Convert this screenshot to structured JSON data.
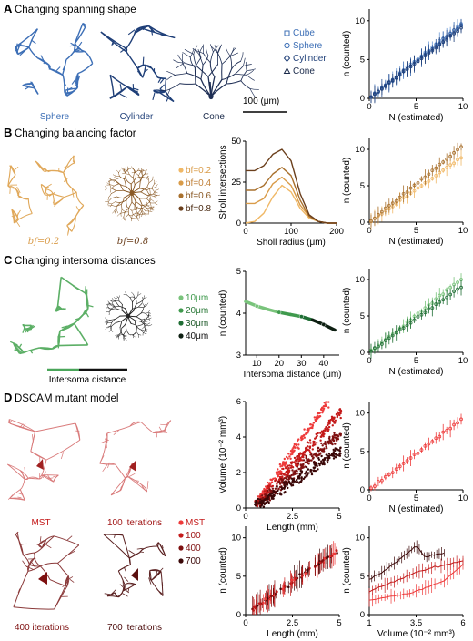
{
  "panels": {
    "A": {
      "letter": "A",
      "title": "Changing spanning shape",
      "labels": [
        "Sphere",
        "Cylinder",
        "Cone"
      ],
      "scale_bar": "100 (μm)",
      "legend": [
        "Cube",
        "Sphere",
        "Cylinder",
        "Cone"
      ]
    },
    "B": {
      "letter": "B",
      "title": "Changing balancing factor",
      "labels": [
        "bf=0.2",
        "bf=0.8"
      ],
      "legend": [
        "bf=0.2",
        "bf=0.4",
        "bf=0.6",
        "bf=0.8"
      ]
    },
    "C": {
      "letter": "C",
      "title": "Changing intersoma distances",
      "bar_label": "Intersoma distance",
      "legend": [
        "10μm",
        "20μm",
        "30μm",
        "40μm"
      ]
    },
    "D": {
      "letter": "D",
      "title": "DSCAM mutant model",
      "labels": [
        "MST",
        "100 iterations",
        "400 iterations",
        "700 iterations"
      ],
      "legend": [
        "MST",
        "100",
        "400",
        "700"
      ]
    }
  },
  "colors": {
    "blue": "#3d6fb6",
    "blue_dark": "#1f3f78",
    "orange": [
      "#f0b866",
      "#d99b48",
      "#a9712e",
      "#6b3f1c"
    ],
    "green": [
      "#79c37b",
      "#3f9a4d",
      "#1f6e34",
      "#0d1f12"
    ],
    "red": [
      "#ee3a3a",
      "#c41a1a",
      "#7e1010",
      "#3b0808"
    ]
  },
  "chart_data": [
    {
      "id": "A-nN",
      "type": "scatter",
      "xlabel": "N (estimated)",
      "ylabel": "n (counted)",
      "xlim": [
        0,
        10
      ],
      "ylim": [
        0,
        11.5
      ],
      "xticks": [
        "0",
        "5",
        "10"
      ],
      "yticks": [
        "0",
        "5",
        "10"
      ],
      "series": [
        {
          "name": "Cube",
          "x": [
            0,
            10
          ],
          "y": [
            0,
            9.8
          ]
        },
        {
          "name": "Sphere",
          "x": [
            0,
            10
          ],
          "y": [
            0,
            9.6
          ]
        },
        {
          "name": "Cylinder",
          "x": [
            0,
            10
          ],
          "y": [
            0,
            9.4
          ]
        },
        {
          "name": "Cone",
          "x": [
            0,
            10
          ],
          "y": [
            0,
            9.2
          ]
        }
      ]
    },
    {
      "id": "B-sholl",
      "type": "line",
      "xlabel": "Sholl radius (μm)",
      "ylabel": "Sholl intersections",
      "xlim": [
        0,
        200
      ],
      "ylim": [
        0,
        50
      ],
      "xticks": [
        "0",
        "100",
        "200"
      ],
      "yticks": [
        "0",
        "25",
        "50"
      ],
      "series": [
        {
          "name": "bf=0.2",
          "x": [
            0,
            20,
            40,
            60,
            80,
            100,
            120,
            140,
            160,
            180,
            200
          ],
          "y": [
            0,
            1,
            6,
            16,
            23,
            19,
            9,
            3,
            1,
            0,
            0
          ]
        },
        {
          "name": "bf=0.4",
          "x": [
            0,
            20,
            40,
            60,
            80,
            100,
            120,
            140,
            160,
            180,
            200
          ],
          "y": [
            12,
            12,
            15,
            24,
            28,
            23,
            11,
            4,
            1,
            0,
            0
          ]
        },
        {
          "name": "bf=0.6",
          "x": [
            0,
            20,
            40,
            60,
            80,
            100,
            120,
            140,
            160,
            180,
            200
          ],
          "y": [
            20,
            20,
            23,
            30,
            34,
            29,
            14,
            4,
            1,
            0,
            0
          ]
        },
        {
          "name": "bf=0.8",
          "x": [
            0,
            20,
            40,
            60,
            80,
            100,
            120,
            140,
            160,
            180,
            200
          ],
          "y": [
            32,
            32,
            35,
            42,
            45,
            38,
            18,
            5,
            1,
            0,
            0
          ]
        }
      ]
    },
    {
      "id": "B-nN",
      "type": "scatter",
      "xlabel": "N (estimated)",
      "ylabel": "n (counted)",
      "xlim": [
        0,
        10
      ],
      "ylim": [
        0,
        11.5
      ],
      "xticks": [
        "0",
        "5",
        "10"
      ],
      "yticks": [
        "0",
        "5",
        "10"
      ],
      "series": [
        {
          "name": "bf=0.2",
          "x": [
            0,
            10
          ],
          "y": [
            0,
            9.0
          ]
        },
        {
          "name": "bf=0.8",
          "x": [
            0,
            10
          ],
          "y": [
            0,
            10.5
          ]
        }
      ]
    },
    {
      "id": "C-dist",
      "type": "line",
      "xlabel": "Intersoma distance (μm)",
      "ylabel": "n (counted)",
      "xlim": [
        5,
        47
      ],
      "ylim": [
        3,
        5
      ],
      "xticks": [
        "10",
        "20",
        "30",
        "40"
      ],
      "yticks": [
        "3",
        "4",
        "5"
      ],
      "series": [
        {
          "name": "n",
          "x": [
            5,
            10,
            15,
            20,
            25,
            30,
            35,
            40,
            45
          ],
          "y": [
            4.28,
            4.17,
            4.09,
            4.02,
            3.97,
            3.92,
            3.84,
            3.73,
            3.6
          ]
        }
      ],
      "markers": {
        "x": [
          10,
          20,
          30,
          40
        ],
        "y": [
          4.17,
          4.02,
          3.92,
          3.73
        ]
      }
    },
    {
      "id": "C-nN",
      "type": "scatter",
      "xlabel": "N (estimated)",
      "ylabel": "n (counted)",
      "xlim": [
        0,
        10
      ],
      "ylim": [
        0,
        11.5
      ],
      "xticks": [
        "0",
        "5",
        "10"
      ],
      "yticks": [
        "0",
        "5",
        "10"
      ],
      "series": [
        {
          "name": "10μm",
          "x": [
            0,
            10
          ],
          "y": [
            0,
            10.2
          ]
        },
        {
          "name": "40μm",
          "x": [
            0,
            10
          ],
          "y": [
            0,
            9.2
          ]
        }
      ]
    },
    {
      "id": "D-vol",
      "type": "scatter",
      "xlabel": "Length (mm)",
      "ylabel": "Volume (10⁻² mm³)",
      "xlim": [
        0,
        5
      ],
      "ylim": [
        0,
        6
      ],
      "xticks": [
        "0",
        "2.5",
        "5"
      ],
      "yticks": [
        "0",
        "2",
        "4",
        "6"
      ],
      "series": [
        {
          "name": "MST",
          "slope": 1.5
        },
        {
          "name": "100",
          "slope": 1.15
        },
        {
          "name": "400",
          "slope": 0.9
        },
        {
          "name": "700",
          "slope": 0.7
        }
      ]
    },
    {
      "id": "D-nN",
      "type": "scatter",
      "xlabel": "N (estimated)",
      "ylabel": "n (counted)",
      "xlim": [
        0,
        10
      ],
      "ylim": [
        0,
        11.5
      ],
      "xticks": [
        "0",
        "5",
        "10"
      ],
      "yticks": [
        "0",
        "5",
        "10"
      ],
      "series": [
        {
          "name": "MST",
          "x": [
            0,
            10
          ],
          "y": [
            0,
            9.4
          ]
        }
      ]
    },
    {
      "id": "D-len",
      "type": "scatter",
      "xlabel": "Length (mm)",
      "ylabel": "n (counted)",
      "xlim": [
        0,
        5
      ],
      "ylim": [
        0,
        11.5
      ],
      "xticks": [
        "0",
        "2.5",
        "5"
      ],
      "yticks": [
        "0",
        "5",
        "10"
      ],
      "series": [
        {
          "name": "MST",
          "x": [
            0,
            5
          ],
          "y": [
            0,
            8.5
          ]
        }
      ]
    },
    {
      "id": "D-volN",
      "type": "scatter",
      "xlabel": "Volume (10⁻² mm³)",
      "ylabel": "n (counted)",
      "xlim": [
        1,
        6
      ],
      "ylim": [
        0,
        11.5
      ],
      "xticks": [
        "1",
        "3.5",
        "6"
      ],
      "yticks": [
        "0",
        "5",
        "10"
      ],
      "series": [
        {
          "name": "MST",
          "x": [
            1,
            2.5,
            3.5,
            5,
            6
          ],
          "y": [
            1.8,
            2.5,
            3.0,
            4.5,
            6.5
          ]
        },
        {
          "name": "100",
          "x": [
            1,
            2.5,
            3.5,
            5,
            6
          ],
          "y": [
            3.0,
            4.5,
            5.5,
            6.5,
            7.0
          ]
        },
        {
          "name": "700",
          "x": [
            1,
            2,
            3,
            3.5,
            4,
            5
          ],
          "y": [
            4.5,
            6.0,
            8.0,
            9.0,
            7.5,
            8.0
          ]
        }
      ]
    }
  ]
}
